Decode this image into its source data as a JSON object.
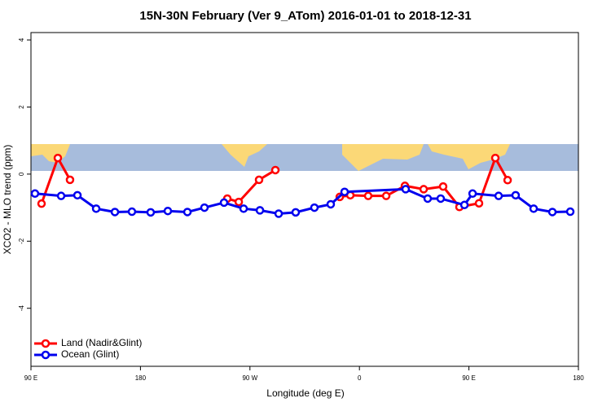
{
  "chart_data": {
    "type": "line",
    "title": "15N-30N February (Ver 9_ATom)   2016-01-01 to 2018-12-31",
    "xlabel": "Longitude (deg E)",
    "ylabel": "XCO2 - MLO trend (ppm)",
    "xlim": [
      90,
      540
    ],
    "xticks": [
      {
        "value": 90,
        "label": "90 E"
      },
      180,
      {
        "value": 270,
        "label": "90 W"
      },
      {
        "value": 360,
        "label": "0"
      },
      {
        "value": 450,
        "label": "90 E"
      },
      {
        "value": 540,
        "label": "180"
      }
    ],
    "ylim": [
      -5.73,
      4.22
    ],
    "yticks": [
      -4,
      -2,
      0,
      2,
      4
    ],
    "legend": "bottom-left",
    "series": [
      {
        "name": "Land (Nadir&Glint)",
        "color": "#ff0000",
        "x": [
          98.7,
          112.1,
          122.1,
          null,
          251.4,
          260.8,
          277.5,
          290.9,
          null,
          343.8,
          352.5,
          367.2,
          382,
          397.4,
          412.8,
          428.8,
          442.2,
          458.3,
          471.7,
          481.8
        ],
        "values": [
          -0.88,
          0.48,
          -0.17,
          null,
          -0.73,
          -0.83,
          -0.17,
          0.12,
          null,
          -0.68,
          -0.63,
          -0.65,
          -0.65,
          -0.35,
          -0.45,
          -0.37,
          -0.98,
          -0.87,
          0.48,
          -0.18
        ]
      },
      {
        "name": "Ocean (Glint)",
        "color": "#0000ee",
        "x": [
          93.3,
          114.8,
          128.2,
          143.6,
          159,
          173,
          188.4,
          202.5,
          218.6,
          232.6,
          248.7,
          264.8,
          278.2,
          293.6,
          307.6,
          323,
          336.4,
          347.8,
          398,
          416.1,
          426.8,
          446.3,
          453,
          474.4,
          488.4,
          503.2,
          518.6,
          533.3
        ],
        "values": [
          -0.58,
          -0.65,
          -0.63,
          -1.03,
          -1.13,
          -1.12,
          -1.14,
          -1.1,
          -1.13,
          -1.0,
          -0.85,
          -1.03,
          -1.08,
          -1.18,
          -1.14,
          -1.0,
          -0.9,
          -0.53,
          -0.45,
          -0.73,
          -0.73,
          -0.92,
          -0.58,
          -0.65,
          -0.63,
          -1.03,
          -1.13,
          -1.12
        ]
      }
    ]
  }
}
